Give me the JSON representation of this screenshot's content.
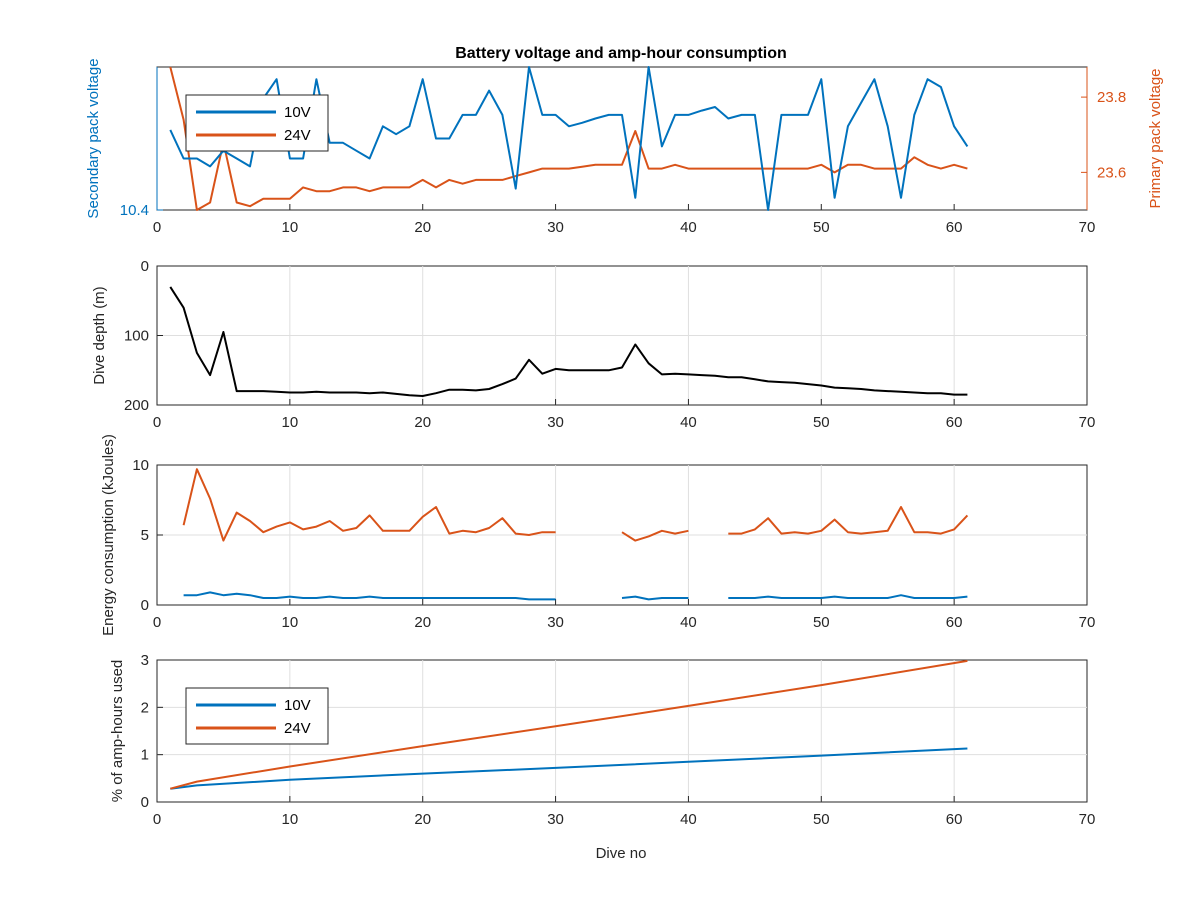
{
  "figure": {
    "title": "Battery voltage and amp-hour consumption",
    "xlabel": "Dive no"
  },
  "colors": {
    "blue": "#0072BD",
    "orange": "#D95319",
    "black": "#000000",
    "axis": "#262626",
    "grid": "#dfdfdf"
  },
  "chart_data": [
    {
      "type": "line",
      "title": "Battery voltage and amp-hour consumption",
      "xlabel": "",
      "ylabel_left": "Secondary pack voltage",
      "ylabel_right": "Primary pack voltage",
      "xlim": [
        0,
        70
      ],
      "xticks": [
        0,
        10,
        20,
        30,
        40,
        50,
        60,
        70
      ],
      "ylim_left": [
        10.4,
        10.6
      ],
      "yticks_left": [
        10.4
      ],
      "ylim_right": [
        23.5,
        23.88
      ],
      "yticks_right": [
        23.6,
        23.8
      ],
      "grid": false,
      "legend": {
        "position": "top-left",
        "entries": [
          "10V",
          "24V"
        ]
      },
      "series": [
        {
          "name": "10V",
          "axis": "left",
          "x": [
            1,
            2,
            3,
            4,
            5,
            6,
            7,
            8,
            9,
            10,
            11,
            12,
            13,
            14,
            15,
            16,
            17,
            18,
            19,
            20,
            21,
            22,
            23,
            24,
            25,
            26,
            27,
            28,
            29,
            30,
            31,
            32,
            33,
            34,
            35,
            36,
            37,
            38,
            39,
            40,
            41,
            42,
            43,
            44,
            45,
            46,
            47,
            48,
            49,
            50,
            51,
            52,
            53,
            54,
            55,
            56,
            57,
            58,
            59,
            60,
            61
          ],
          "y": [
            10.512,
            10.472,
            10.472,
            10.461,
            10.483,
            10.472,
            10.461,
            10.556,
            10.583,
            10.472,
            10.472,
            10.583,
            10.494,
            10.494,
            10.483,
            10.472,
            10.517,
            10.506,
            10.517,
            10.583,
            10.5,
            10.5,
            10.533,
            10.533,
            10.567,
            10.533,
            10.43,
            10.6,
            10.533,
            10.533,
            10.517,
            10.522,
            10.528,
            10.533,
            10.533,
            10.417,
            10.6,
            10.489,
            10.533,
            10.533,
            10.539,
            10.544,
            10.528,
            10.533,
            10.533,
            10.4,
            10.533,
            10.533,
            10.533,
            10.583,
            10.417,
            10.517,
            10.55,
            10.583,
            10.517,
            10.417,
            10.533,
            10.583,
            10.572,
            10.517,
            10.489
          ]
        },
        {
          "name": "24V",
          "axis": "right",
          "x": [
            1,
            2,
            3,
            4,
            5,
            6,
            7,
            8,
            9,
            10,
            11,
            12,
            13,
            14,
            15,
            16,
            17,
            18,
            19,
            20,
            21,
            22,
            23,
            24,
            25,
            26,
            27,
            28,
            29,
            30,
            31,
            32,
            33,
            34,
            35,
            36,
            37,
            38,
            39,
            40,
            41,
            42,
            43,
            44,
            45,
            46,
            47,
            48,
            49,
            50,
            51,
            52,
            53,
            54,
            55,
            56,
            57,
            58,
            59,
            60,
            61
          ],
          "y": [
            23.88,
            23.74,
            23.5,
            23.52,
            23.68,
            23.52,
            23.51,
            23.53,
            23.53,
            23.53,
            23.56,
            23.55,
            23.55,
            23.56,
            23.56,
            23.55,
            23.56,
            23.56,
            23.56,
            23.58,
            23.56,
            23.58,
            23.57,
            23.58,
            23.58,
            23.58,
            23.59,
            23.6,
            23.61,
            23.61,
            23.61,
            23.615,
            23.62,
            23.62,
            23.62,
            23.71,
            23.61,
            23.61,
            23.62,
            23.61,
            23.61,
            23.61,
            23.61,
            23.61,
            23.61,
            23.61,
            23.61,
            23.61,
            23.61,
            23.62,
            23.6,
            23.62,
            23.62,
            23.61,
            23.61,
            23.61,
            23.64,
            23.62,
            23.61,
            23.62,
            23.61
          ]
        }
      ]
    },
    {
      "type": "line",
      "ylabel": "Dive depth (m)",
      "xlim": [
        0,
        70
      ],
      "xticks": [
        0,
        10,
        20,
        30,
        40,
        50,
        60,
        70
      ],
      "ylim": [
        0,
        200
      ],
      "yticks": [
        0,
        100,
        200
      ],
      "y_reversed": true,
      "grid": true,
      "series": [
        {
          "x": [
            1,
            2,
            3,
            4,
            5,
            6,
            7,
            8,
            9,
            10,
            11,
            12,
            13,
            14,
            15,
            16,
            17,
            18,
            19,
            20,
            21,
            22,
            23,
            24,
            25,
            26,
            27,
            28,
            29,
            30,
            31,
            32,
            33,
            34,
            35,
            36,
            37,
            38,
            39,
            40,
            41,
            42,
            43,
            44,
            45,
            46,
            47,
            48,
            49,
            50,
            51,
            52,
            53,
            54,
            55,
            56,
            57,
            58,
            59,
            60,
            61
          ],
          "y": [
            30,
            60,
            125,
            157,
            95,
            180,
            180,
            180,
            181,
            182,
            182,
            181,
            182,
            182,
            182,
            183,
            182,
            184,
            186,
            187,
            183,
            178,
            178,
            179,
            177,
            170,
            162,
            135,
            155,
            148,
            150,
            150,
            150,
            150,
            146,
            113,
            140,
            156,
            155,
            156,
            157,
            158,
            160,
            160,
            163,
            166,
            167,
            168,
            170,
            172,
            175,
            176,
            177,
            179,
            180,
            181,
            182,
            183,
            183,
            185,
            185
          ]
        }
      ]
    },
    {
      "type": "line",
      "ylabel": "Energy consumption (kJoules)",
      "xlim": [
        0,
        70
      ],
      "xticks": [
        0,
        10,
        20,
        30,
        40,
        50,
        60,
        70
      ],
      "ylim": [
        0,
        10
      ],
      "yticks": [
        0,
        5,
        10
      ],
      "grid": true,
      "series": [
        {
          "name": "24V",
          "segments": [
            {
              "x": [
                2,
                3,
                4,
                5,
                6,
                7,
                8,
                9,
                10,
                11,
                12,
                13,
                14,
                15,
                16,
                17,
                18,
                19,
                20,
                21,
                22,
                23,
                24,
                25,
                26,
                27,
                28,
                29,
                30
              ],
              "y": [
                5.7,
                9.7,
                7.6,
                4.6,
                6.6,
                6.0,
                5.2,
                5.6,
                5.9,
                5.4,
                5.6,
                6.0,
                5.3,
                5.5,
                6.4,
                5.3,
                5.3,
                5.3,
                6.3,
                7.0,
                5.1,
                5.3,
                5.2,
                5.5,
                6.2,
                5.1,
                5.0,
                5.2,
                5.2
              ]
            },
            {
              "x": [
                35,
                36,
                37,
                38,
                39,
                40
              ],
              "y": [
                5.2,
                4.6,
                4.9,
                5.3,
                5.1,
                5.3
              ]
            },
            {
              "x": [
                43,
                44,
                45,
                46,
                47,
                48,
                49,
                50,
                51,
                52,
                53,
                54,
                55,
                56,
                57,
                58,
                59,
                60,
                61
              ],
              "y": [
                5.1,
                5.1,
                5.4,
                6.2,
                5.1,
                5.2,
                5.1,
                5.3,
                6.1,
                5.2,
                5.1,
                5.2,
                5.3,
                7.0,
                5.2,
                5.2,
                5.1,
                5.4,
                6.4
              ]
            }
          ]
        },
        {
          "name": "10V",
          "segments": [
            {
              "x": [
                2,
                3,
                4,
                5,
                6,
                7,
                8,
                9,
                10,
                11,
                12,
                13,
                14,
                15,
                16,
                17,
                18,
                19,
                20,
                21,
                22,
                23,
                24,
                25,
                26,
                27,
                28,
                29,
                30
              ],
              "y": [
                0.7,
                0.7,
                0.9,
                0.7,
                0.8,
                0.7,
                0.5,
                0.5,
                0.6,
                0.5,
                0.5,
                0.6,
                0.5,
                0.5,
                0.6,
                0.5,
                0.5,
                0.5,
                0.5,
                0.5,
                0.5,
                0.5,
                0.5,
                0.5,
                0.5,
                0.5,
                0.4,
                0.4,
                0.4
              ]
            },
            {
              "x": [
                35,
                36,
                37,
                38,
                39,
                40
              ],
              "y": [
                0.5,
                0.6,
                0.4,
                0.5,
                0.5,
                0.5
              ]
            },
            {
              "x": [
                43,
                44,
                45,
                46,
                47,
                48,
                49,
                50,
                51,
                52,
                53,
                54,
                55,
                56,
                57,
                58,
                59,
                60,
                61
              ],
              "y": [
                0.5,
                0.5,
                0.5,
                0.6,
                0.5,
                0.5,
                0.5,
                0.5,
                0.6,
                0.5,
                0.5,
                0.5,
                0.5,
                0.7,
                0.5,
                0.5,
                0.5,
                0.5,
                0.6
              ]
            }
          ]
        }
      ]
    },
    {
      "type": "line",
      "xlabel": "Dive no",
      "ylabel": "% of amp-hours used",
      "xlim": [
        0,
        70
      ],
      "xticks": [
        0,
        10,
        20,
        30,
        40,
        50,
        60,
        70
      ],
      "ylim": [
        0,
        3
      ],
      "yticks": [
        0,
        1,
        2,
        3
      ],
      "grid": true,
      "legend": {
        "position": "bottom-left",
        "entries": [
          "10V",
          "24V"
        ]
      },
      "series": [
        {
          "name": "10V",
          "x": [
            1,
            3,
            10,
            20,
            30,
            40,
            50,
            61
          ],
          "y": [
            0.28,
            0.35,
            0.47,
            0.6,
            0.72,
            0.85,
            0.98,
            1.13
          ]
        },
        {
          "name": "24V",
          "x": [
            1,
            3,
            10,
            20,
            30,
            40,
            50,
            61
          ],
          "y": [
            0.28,
            0.43,
            0.75,
            1.18,
            1.6,
            2.03,
            2.47,
            2.98
          ]
        }
      ]
    }
  ]
}
